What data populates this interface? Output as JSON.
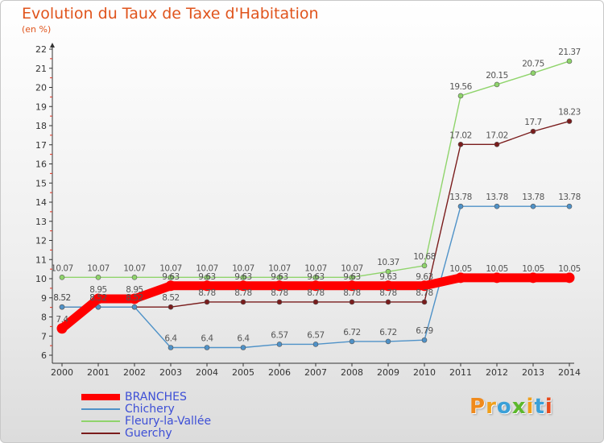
{
  "title": "Evolution du Taux de Taxe d'Habitation",
  "subtitle": "(en %)",
  "logo": {
    "text": "Proxiti",
    "letter_colors": [
      "#f08a1c",
      "#f0a01c",
      "#3aa0d8",
      "#5cb82c",
      "#f0a01c",
      "#3aa0d8",
      "#e84a1c"
    ]
  },
  "chart_data": {
    "type": "line",
    "x": [
      "2000",
      "2001",
      "2002",
      "2003",
      "2004",
      "2005",
      "2006",
      "2007",
      "2008",
      "2009",
      "2010",
      "2011",
      "2012",
      "2013",
      "2014"
    ],
    "ylim": [
      6,
      22
    ],
    "yticks": [
      "6",
      "7",
      "8",
      "9",
      "10",
      "11",
      "12",
      "13",
      "14",
      "15",
      "16",
      "17",
      "18",
      "19",
      "20",
      "21",
      "22"
    ],
    "grid": false,
    "legend_position": "bottom-left",
    "series": [
      {
        "name": "BRANCHES",
        "color": "#ff0000",
        "values": [
          7.4,
          8.95,
          8.95,
          9.63,
          9.63,
          9.63,
          9.63,
          9.63,
          9.63,
          9.63,
          9.63,
          10.05,
          10.05,
          10.05,
          10.05
        ],
        "labels": [
          "7.4",
          "8.95",
          "8.95",
          "9.63",
          "9.63",
          "9.63",
          "9.63",
          "9.63",
          "9.63",
          "9.63",
          "9.63",
          "10.05",
          "10.05",
          "10.05",
          "10.05"
        ]
      },
      {
        "name": "Chichery",
        "color": "#4f92c8",
        "values": [
          8.52,
          8.52,
          8.52,
          6.4,
          6.4,
          6.4,
          6.57,
          6.57,
          6.72,
          6.72,
          6.79,
          13.78,
          13.78,
          13.78,
          13.78
        ],
        "labels": [
          "8.52",
          "8.52",
          "8.52",
          "6.4",
          "6.4",
          "6.4",
          "6.57",
          "6.57",
          "6.72",
          "6.72",
          "6.79",
          "13.78",
          "13.78",
          "13.78",
          "13.78"
        ]
      },
      {
        "name": "Fleury-la-Vallée",
        "color": "#8fd46b",
        "values": [
          10.07,
          10.07,
          10.07,
          10.07,
          10.07,
          10.07,
          10.07,
          10.07,
          10.07,
          10.37,
          10.68,
          19.56,
          20.15,
          20.75,
          21.37
        ],
        "labels": [
          "10.07",
          "10.07",
          "10.07",
          "10.07",
          "10.07",
          "10.07",
          "10.07",
          "10.07",
          "10.07",
          "10.37",
          "10.68",
          "19.56",
          "20.15",
          "20.75",
          "21.37"
        ]
      },
      {
        "name": "Guerchy",
        "color": "#7a1c1c",
        "values": [
          8.52,
          8.52,
          8.52,
          8.52,
          8.78,
          8.78,
          8.78,
          8.78,
          8.78,
          8.78,
          8.78,
          17.02,
          17.02,
          17.7,
          18.23
        ],
        "labels": [
          "8.52",
          "8.52",
          "8.52",
          "8.52",
          "8.78",
          "8.78",
          "8.78",
          "8.78",
          "8.78",
          "8.78",
          "8.78",
          "17.02",
          "17.02",
          "17.7",
          "18.23"
        ]
      }
    ]
  }
}
